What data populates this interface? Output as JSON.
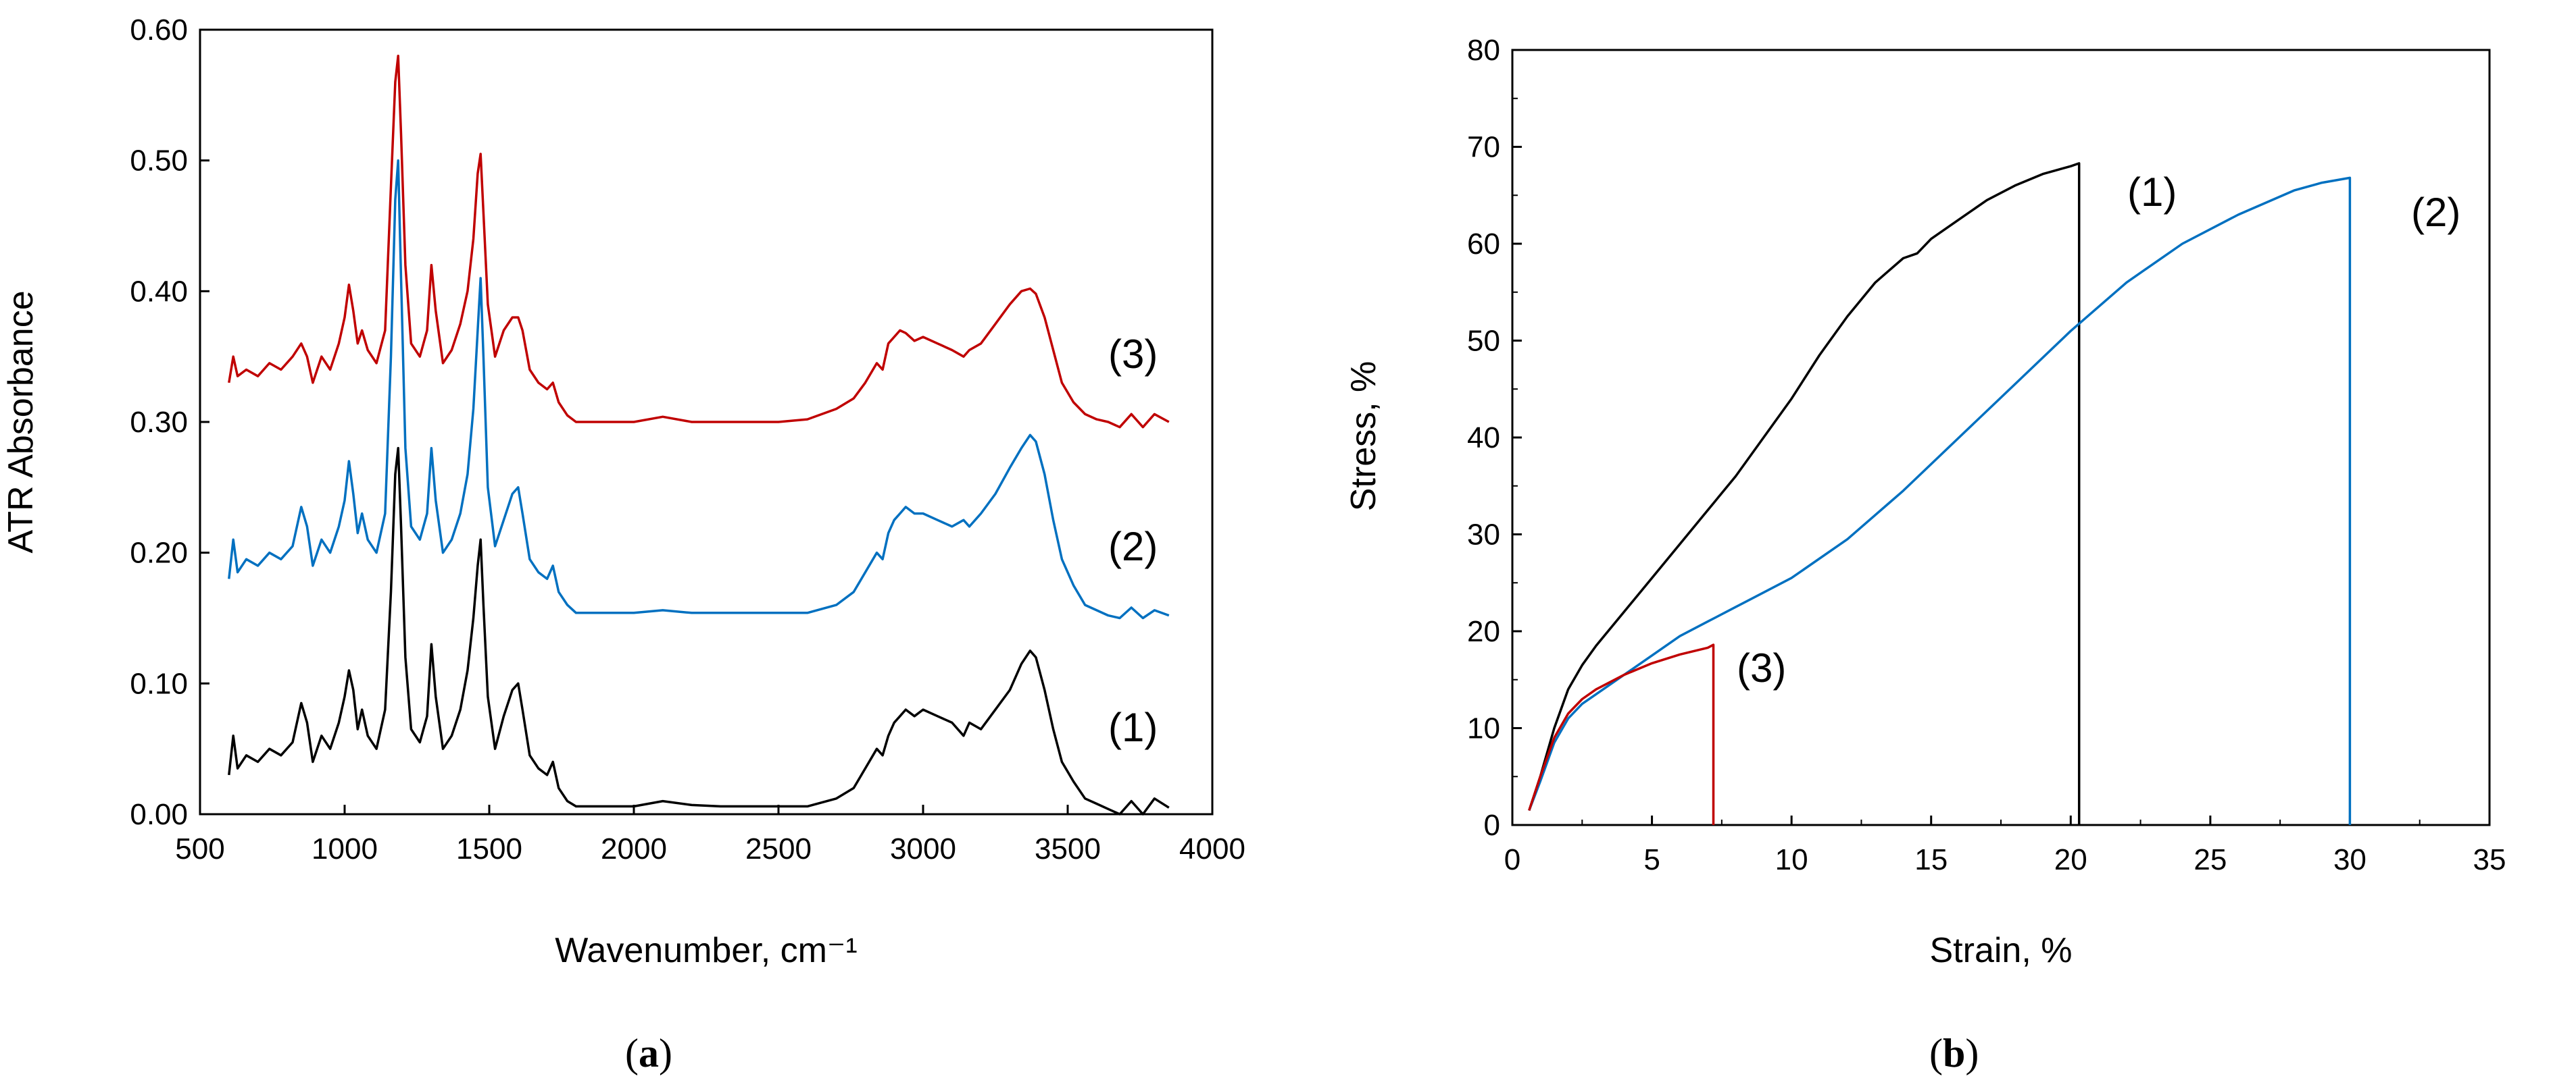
{
  "chart_data": [
    {
      "type": "line",
      "caption": "a",
      "xlabel": "Wavenumber, cm⁻¹",
      "ylabel": "ATR Absorbance",
      "xlim": [
        500,
        4000
      ],
      "ylim": [
        0,
        0.6
      ],
      "xticks": [
        "500",
        "1000",
        "1500",
        "2000",
        "2500",
        "3000",
        "3500",
        "4000"
      ],
      "yticks": [
        "0.00",
        "0.10",
        "0.20",
        "0.30",
        "0.40",
        "0.50",
        "0.60"
      ],
      "grid": false,
      "baseline_offsets": [
        0.0,
        0.15,
        0.3
      ],
      "series": [
        {
          "name": "(1)",
          "color": "#000000",
          "offset": 0.0,
          "x": [
            600,
            615,
            630,
            660,
            700,
            740,
            780,
            820,
            850,
            870,
            890,
            920,
            950,
            980,
            1000,
            1015,
            1030,
            1045,
            1060,
            1080,
            1110,
            1140,
            1160,
            1175,
            1185,
            1195,
            1210,
            1230,
            1260,
            1285,
            1300,
            1315,
            1340,
            1370,
            1400,
            1425,
            1445,
            1460,
            1470,
            1480,
            1495,
            1520,
            1550,
            1580,
            1600,
            1615,
            1640,
            1670,
            1700,
            1720,
            1740,
            1770,
            1800,
            1900,
            2000,
            2100,
            2200,
            2300,
            2400,
            2500,
            2600,
            2700,
            2760,
            2800,
            2840,
            2860,
            2880,
            2900,
            2920,
            2940,
            2970,
            3000,
            3050,
            3100,
            3140,
            3160,
            3200,
            3250,
            3300,
            3340,
            3370,
            3390,
            3420,
            3450,
            3480,
            3520,
            3560,
            3600,
            3640,
            3680,
            3720,
            3760,
            3800,
            3850
          ],
          "y": [
            0.03,
            0.06,
            0.035,
            0.045,
            0.04,
            0.05,
            0.045,
            0.055,
            0.085,
            0.07,
            0.04,
            0.06,
            0.05,
            0.07,
            0.09,
            0.11,
            0.095,
            0.065,
            0.08,
            0.06,
            0.05,
            0.08,
            0.17,
            0.26,
            0.28,
            0.22,
            0.12,
            0.065,
            0.055,
            0.075,
            0.13,
            0.09,
            0.05,
            0.06,
            0.08,
            0.11,
            0.15,
            0.19,
            0.21,
            0.16,
            0.09,
            0.05,
            0.075,
            0.095,
            0.1,
            0.08,
            0.045,
            0.035,
            0.03,
            0.04,
            0.02,
            0.01,
            0.006,
            0.006,
            0.006,
            0.01,
            0.007,
            0.006,
            0.006,
            0.006,
            0.006,
            0.012,
            0.02,
            0.035,
            0.05,
            0.045,
            0.06,
            0.07,
            0.075,
            0.08,
            0.075,
            0.08,
            0.075,
            0.07,
            0.06,
            0.07,
            0.065,
            0.08,
            0.095,
            0.115,
            0.125,
            0.12,
            0.095,
            0.065,
            0.04,
            0.025,
            0.012,
            0.008,
            0.004,
            0.0,
            0.01,
            0.0,
            0.012,
            0.005
          ]
        },
        {
          "name": "(2)",
          "color": "#0070C0",
          "offset": 0.15,
          "x": [
            600,
            615,
            630,
            660,
            700,
            740,
            780,
            820,
            850,
            870,
            890,
            920,
            950,
            980,
            1000,
            1015,
            1030,
            1045,
            1060,
            1080,
            1110,
            1140,
            1160,
            1175,
            1185,
            1195,
            1210,
            1230,
            1260,
            1285,
            1300,
            1315,
            1340,
            1370,
            1400,
            1425,
            1445,
            1460,
            1470,
            1480,
            1495,
            1520,
            1550,
            1580,
            1600,
            1615,
            1640,
            1670,
            1700,
            1720,
            1740,
            1770,
            1800,
            1900,
            2000,
            2100,
            2200,
            2300,
            2400,
            2500,
            2600,
            2700,
            2760,
            2800,
            2840,
            2860,
            2880,
            2900,
            2920,
            2940,
            2970,
            3000,
            3050,
            3100,
            3140,
            3160,
            3200,
            3250,
            3300,
            3340,
            3370,
            3390,
            3420,
            3450,
            3480,
            3520,
            3560,
            3600,
            3640,
            3680,
            3720,
            3760,
            3800,
            3850
          ],
          "y": [
            0.03,
            0.06,
            0.035,
            0.045,
            0.04,
            0.05,
            0.045,
            0.055,
            0.085,
            0.07,
            0.04,
            0.06,
            0.05,
            0.07,
            0.09,
            0.12,
            0.095,
            0.065,
            0.08,
            0.06,
            0.05,
            0.08,
            0.2,
            0.32,
            0.35,
            0.26,
            0.13,
            0.07,
            0.06,
            0.08,
            0.13,
            0.09,
            0.05,
            0.06,
            0.08,
            0.11,
            0.16,
            0.22,
            0.26,
            0.2,
            0.1,
            0.055,
            0.075,
            0.095,
            0.1,
            0.08,
            0.045,
            0.035,
            0.03,
            0.04,
            0.02,
            0.01,
            0.004,
            0.004,
            0.004,
            0.006,
            0.004,
            0.004,
            0.004,
            0.004,
            0.004,
            0.01,
            0.02,
            0.035,
            0.05,
            0.045,
            0.065,
            0.075,
            0.08,
            0.085,
            0.08,
            0.08,
            0.075,
            0.07,
            0.075,
            0.07,
            0.08,
            0.095,
            0.115,
            0.13,
            0.14,
            0.135,
            0.11,
            0.075,
            0.045,
            0.025,
            0.01,
            0.006,
            0.002,
            0.0,
            0.008,
            0.0,
            0.006,
            0.002
          ]
        },
        {
          "name": "(3)",
          "color": "#C00000",
          "offset": 0.3,
          "x": [
            600,
            615,
            630,
            660,
            700,
            740,
            780,
            820,
            850,
            870,
            890,
            920,
            950,
            980,
            1000,
            1015,
            1030,
            1045,
            1060,
            1080,
            1110,
            1140,
            1160,
            1175,
            1185,
            1195,
            1210,
            1230,
            1260,
            1285,
            1300,
            1315,
            1340,
            1370,
            1400,
            1425,
            1445,
            1460,
            1470,
            1480,
            1495,
            1520,
            1550,
            1580,
            1600,
            1615,
            1640,
            1670,
            1700,
            1720,
            1740,
            1770,
            1800,
            1900,
            2000,
            2100,
            2200,
            2300,
            2400,
            2500,
            2600,
            2700,
            2760,
            2800,
            2840,
            2860,
            2880,
            2900,
            2920,
            2940,
            2970,
            3000,
            3050,
            3100,
            3140,
            3160,
            3200,
            3250,
            3300,
            3340,
            3370,
            3390,
            3420,
            3450,
            3480,
            3520,
            3560,
            3600,
            3640,
            3680,
            3720,
            3760,
            3800,
            3850
          ],
          "y": [
            0.03,
            0.05,
            0.035,
            0.04,
            0.035,
            0.045,
            0.04,
            0.05,
            0.06,
            0.05,
            0.03,
            0.05,
            0.04,
            0.06,
            0.08,
            0.105,
            0.085,
            0.06,
            0.07,
            0.055,
            0.045,
            0.07,
            0.18,
            0.26,
            0.28,
            0.22,
            0.12,
            0.06,
            0.05,
            0.07,
            0.12,
            0.085,
            0.045,
            0.055,
            0.075,
            0.1,
            0.14,
            0.19,
            0.205,
            0.16,
            0.09,
            0.05,
            0.07,
            0.08,
            0.08,
            0.07,
            0.04,
            0.03,
            0.025,
            0.03,
            0.015,
            0.005,
            0.0,
            0.0,
            0.0,
            0.004,
            0.0,
            0.0,
            0.0,
            0.0,
            0.002,
            0.01,
            0.018,
            0.03,
            0.045,
            0.04,
            0.06,
            0.065,
            0.07,
            0.068,
            0.062,
            0.065,
            0.06,
            0.055,
            0.05,
            0.055,
            0.06,
            0.075,
            0.09,
            0.1,
            0.102,
            0.098,
            0.08,
            0.055,
            0.03,
            0.015,
            0.006,
            0.002,
            0.0,
            -0.004,
            0.006,
            -0.004,
            0.006,
            0.0
          ]
        }
      ],
      "annotations": [
        "(1)",
        "(2)",
        "(3)"
      ]
    },
    {
      "type": "line",
      "caption": "b",
      "xlabel": "Strain, %",
      "ylabel": "Stress, %",
      "xlim": [
        0,
        35
      ],
      "ylim": [
        0,
        80
      ],
      "xticks": [
        "0",
        "5",
        "10",
        "15",
        "20",
        "25",
        "30",
        "35"
      ],
      "yticks": [
        "0",
        "10",
        "20",
        "30",
        "40",
        "50",
        "60",
        "70",
        "80"
      ],
      "grid": false,
      "series": [
        {
          "name": "(1)",
          "color": "#000000",
          "x": [
            0.6,
            1,
            1.5,
            2,
            2.5,
            3,
            4,
            5,
            6,
            7,
            8,
            9,
            10,
            11,
            12,
            13,
            14,
            14.5,
            15,
            16,
            17,
            18,
            19,
            20,
            20.3,
            20.3
          ],
          "y": [
            1.5,
            5,
            10,
            14,
            16.5,
            18.5,
            22,
            25.5,
            29,
            32.5,
            36,
            40,
            44,
            48.5,
            52.5,
            56,
            58.5,
            59,
            60.5,
            62.5,
            64.5,
            66,
            67.2,
            68,
            68.3,
            0
          ]
        },
        {
          "name": "(2)",
          "color": "#0070C0",
          "x": [
            0.6,
            1,
            1.5,
            2,
            2.5,
            3,
            4,
            5,
            6,
            7,
            8,
            10,
            12,
            14,
            16,
            18,
            20,
            22,
            24,
            26,
            28,
            29,
            30,
            30,
            30
          ],
          "y": [
            1.5,
            4.5,
            8.5,
            11,
            12.5,
            13.5,
            15.5,
            17.5,
            19.5,
            21,
            22.5,
            25.5,
            29.5,
            34.5,
            40,
            45.5,
            51,
            56,
            60,
            63,
            65.5,
            66.3,
            66.8,
            66.8,
            0
          ]
        },
        {
          "name": "(3)",
          "color": "#C00000",
          "x": [
            0.6,
            1,
            1.5,
            2,
            2.5,
            3,
            4,
            5,
            6,
            7,
            7.2,
            7.2
          ],
          "y": [
            1.5,
            5,
            9,
            11.5,
            13,
            14,
            15.5,
            16.7,
            17.6,
            18.3,
            18.6,
            0
          ]
        }
      ],
      "annotations": [
        "(1)",
        "(2)",
        "(3)"
      ]
    }
  ]
}
